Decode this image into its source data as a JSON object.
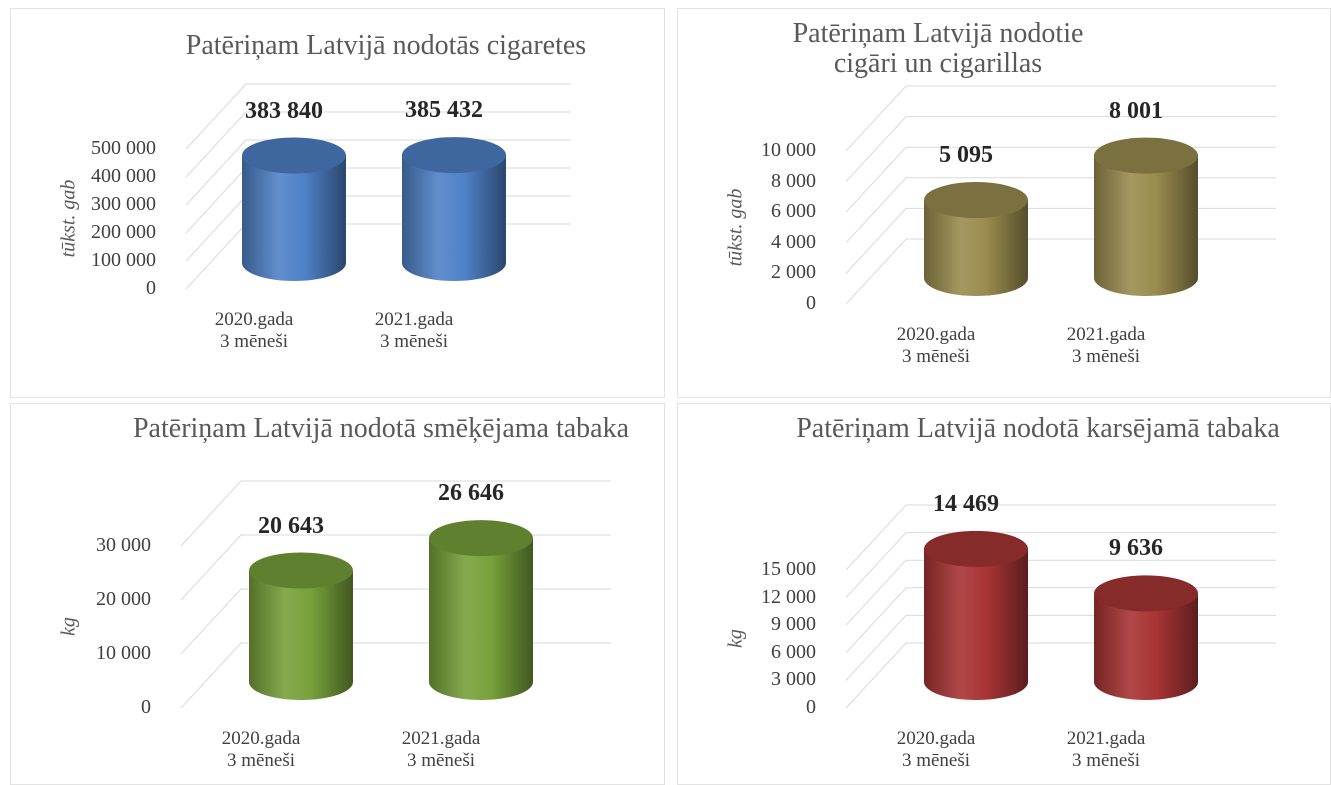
{
  "chart_data": [
    {
      "type": "bar",
      "title": "Patēriņam Latvijā nodotās cigaretes",
      "y_label": "tūkst. gab",
      "categories": [
        "2020.gada\n3 mēneši",
        "2021.gada\n3 mēneši"
      ],
      "values": [
        383840,
        385432
      ],
      "value_labels": [
        "383 840",
        "385 432"
      ],
      "color": "#4f81c7",
      "ylim": [
        0,
        500000
      ],
      "yticks": [
        0,
        {
          "value": 100000,
          "label": "100 000"
        },
        {
          "value": 200000,
          "label": "200 000"
        },
        {
          "value": 300000,
          "label": "300 000"
        },
        {
          "value": 400000,
          "label": "400 000"
        },
        {
          "value": 500000,
          "label": "500 000"
        }
      ],
      "grid": true
    },
    {
      "type": "bar",
      "title": "Patēriņam Latvijā nodotie cigāri un cigarillas",
      "y_label": "tūkst. gab",
      "categories": [
        "2020.gada\n3 mēneši",
        "2021.gada\n3 mēneši"
      ],
      "values": [
        5095,
        8001
      ],
      "value_labels": [
        "5 095",
        "8 001"
      ],
      "color": "#9a8c4f",
      "ylim": [
        0,
        10000
      ],
      "yticks": [
        0,
        {
          "value": 2000,
          "label": "2 000"
        },
        {
          "value": 4000,
          "label": "4 000"
        },
        {
          "value": 6000,
          "label": "6 000"
        },
        {
          "value": 8000,
          "label": "8 000"
        },
        {
          "value": 10000,
          "label": "10 000"
        }
      ],
      "grid": true
    },
    {
      "type": "bar",
      "title": "Patēriņam Latvijā nodotā smēķējama tabaka",
      "y_label": "kg",
      "categories": [
        "2020.gada\n3 mēneši",
        "2021.gada\n3 mēneši"
      ],
      "values": [
        20643,
        26646
      ],
      "value_labels": [
        "20 643",
        "26 646"
      ],
      "color": "#77a03a",
      "ylim": [
        0,
        30000
      ],
      "yticks": [
        0,
        {
          "value": 10000,
          "label": "10 000"
        },
        {
          "value": 20000,
          "label": "20 000"
        },
        {
          "value": 30000,
          "label": "30 000"
        }
      ],
      "grid": true
    },
    {
      "type": "bar",
      "title": "Patēriņam Latvijā nodotā karsējamā tabaka",
      "y_label": "kg",
      "categories": [
        "2020.gada\n3 mēneši",
        "2021.gada\n3 mēneši"
      ],
      "values": [
        14469,
        9636
      ],
      "value_labels": [
        "14 469",
        "9 636"
      ],
      "color": "#a83434",
      "ylim": [
        0,
        15000
      ],
      "yticks": [
        0,
        {
          "value": 3000,
          "label": "3 000"
        },
        {
          "value": 6000,
          "label": "6 000"
        },
        {
          "value": 9000,
          "label": "9 000"
        },
        {
          "value": 12000,
          "label": "12 000"
        },
        {
          "value": 15000,
          "label": "15 000"
        }
      ],
      "grid": true
    }
  ]
}
